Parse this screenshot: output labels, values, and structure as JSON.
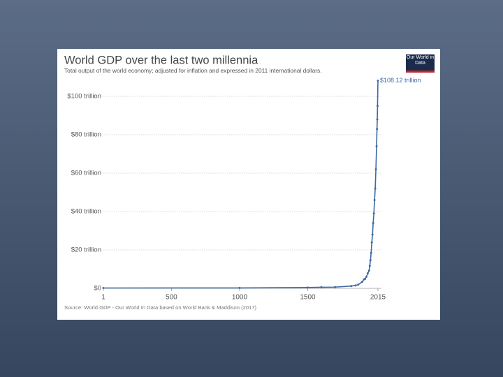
{
  "chart_data": {
    "type": "line",
    "title": "World GDP over the last two millennia",
    "subtitle": "Total output of the world economy; adjusted for inflation and expressed in 2011 international dollars.",
    "logo": "Our World in Data",
    "source": "Source: World GDP - Our World In Data based on World Bank & Maddison (2017)",
    "x": [
      1,
      1000,
      1500,
      1600,
      1700,
      1820,
      1850,
      1870,
      1900,
      1913,
      1920,
      1930,
      1940,
      1950,
      1955,
      1960,
      1965,
      1970,
      1975,
      1980,
      1985,
      1990,
      1995,
      2000,
      2005,
      2008,
      2010,
      2012,
      2015
    ],
    "series": [
      {
        "name": "World",
        "color": "#3e6aa3",
        "values": [
          0.18,
          0.21,
          0.43,
          0.58,
          0.64,
          1.2,
          1.5,
          1.9,
          3.4,
          4.7,
          4.9,
          6,
          7.8,
          9.25,
          11.7,
          14.6,
          18.5,
          23.9,
          28,
          34,
          39,
          46,
          52,
          62,
          74,
          83,
          88,
          95,
          108.12
        ],
        "end_label": "$108.12 trillion"
      }
    ],
    "xlim": [
      1,
      2015
    ],
    "xticks": [
      1,
      500,
      1000,
      1500,
      2015
    ],
    "ylim": [
      0,
      110
    ],
    "yticks": [
      {
        "value": 0,
        "label": "$0"
      },
      {
        "value": 20,
        "label": "$20 trillion"
      },
      {
        "value": 40,
        "label": "$40 trillion"
      },
      {
        "value": 60,
        "label": "$60 trillion"
      },
      {
        "value": 80,
        "label": "$80 trillion"
      },
      {
        "value": 100,
        "label": "$100 trillion"
      }
    ],
    "grid": true
  }
}
